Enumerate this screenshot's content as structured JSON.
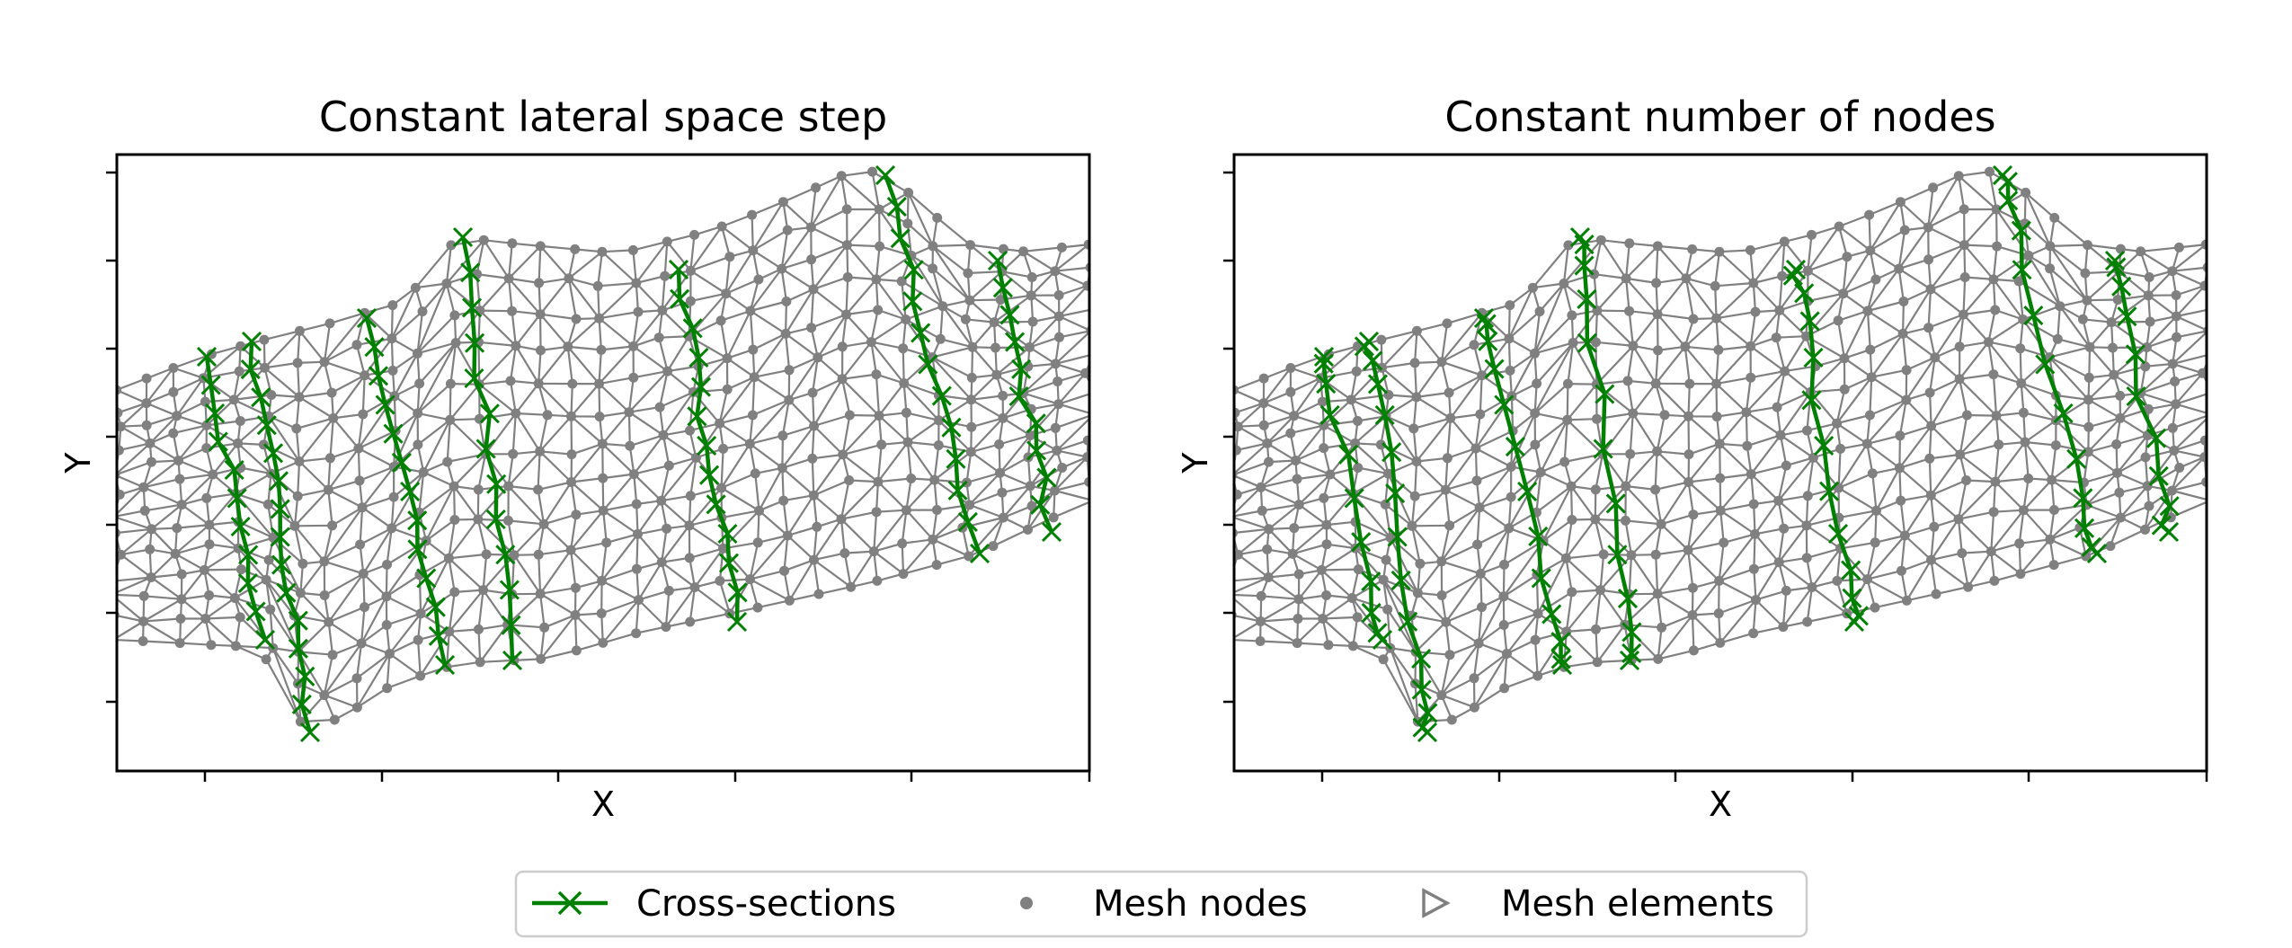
{
  "colors": {
    "mesh": "#808080",
    "cross_sections": "#008000",
    "frame": "#000000"
  },
  "chart_data": [
    {
      "type": "diagram",
      "title": "Constant lateral space step",
      "xlabel": "X",
      "ylabel": "Y",
      "ticks_labeled": false,
      "cross_section_markers": "constant-lateral-step"
    },
    {
      "type": "diagram",
      "title": "Constant number of nodes",
      "xlabel": "X",
      "ylabel": "Y",
      "ticks_labeled": false,
      "cross_section_markers": "constant-node-count"
    }
  ],
  "legend": {
    "placement": "bottom-center",
    "items": [
      {
        "label": "Cross-sections",
        "marker": "x-line",
        "color": "#008000"
      },
      {
        "label": "Mesh nodes",
        "marker": "dot",
        "color": "#808080"
      },
      {
        "label": "Mesh elements",
        "marker": "triangle-right-outline",
        "color": "#808080"
      }
    ]
  }
}
